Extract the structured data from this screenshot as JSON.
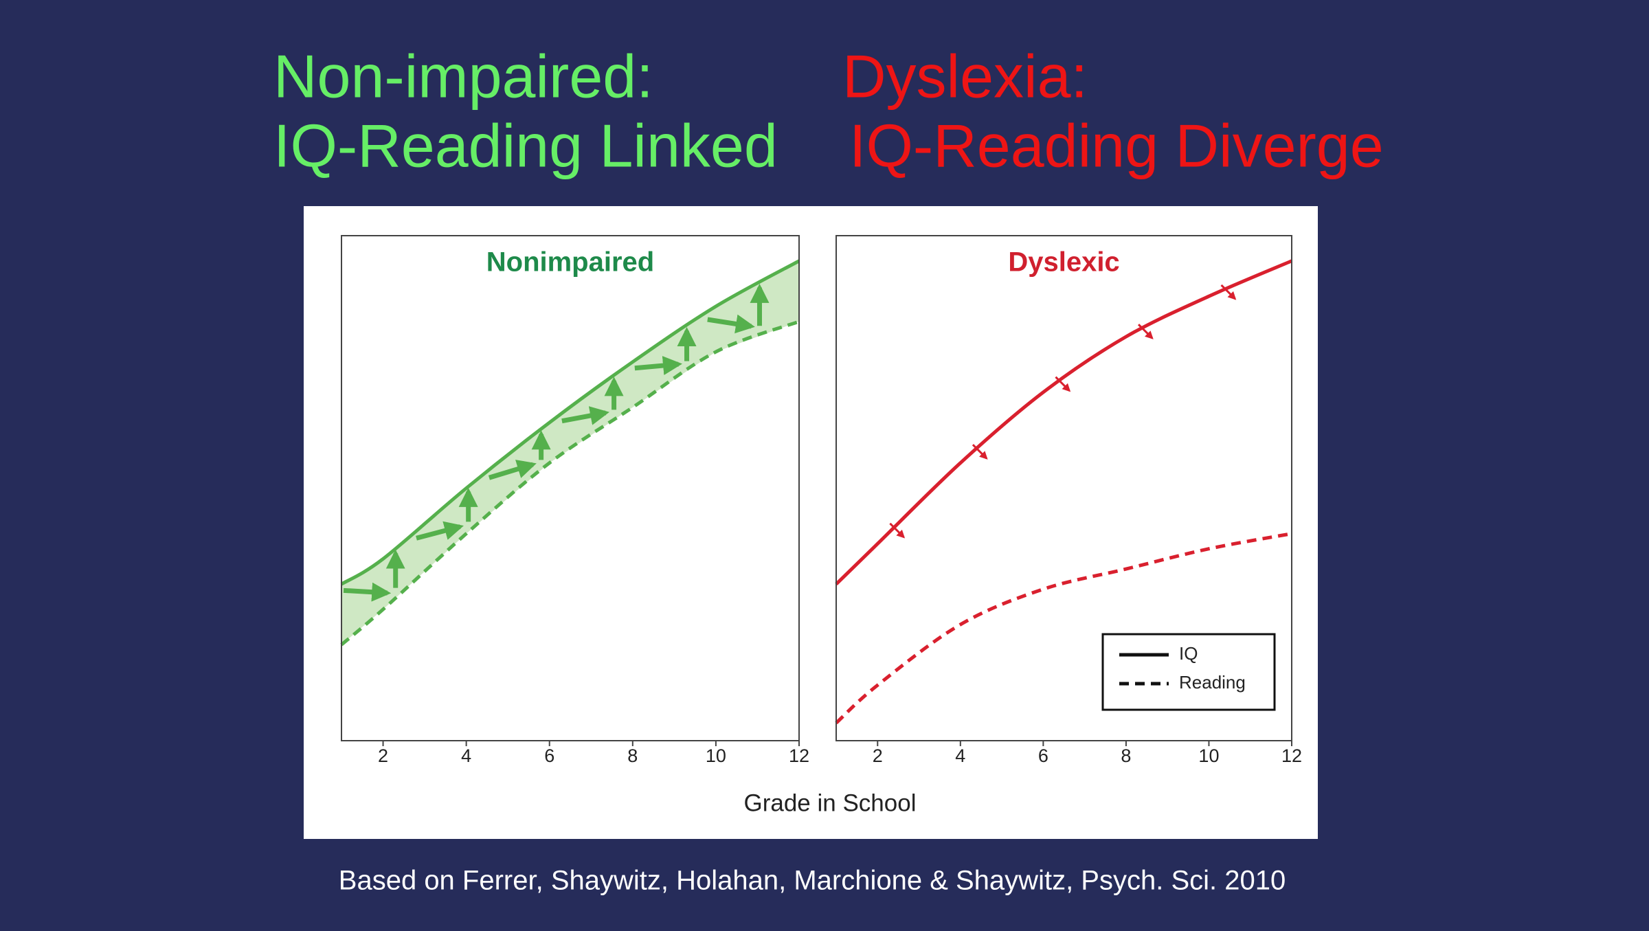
{
  "slide": {
    "headline_left": [
      "Non-impaired:",
      "IQ-Reading Linked"
    ],
    "headline_right": [
      "Dyslexia:",
      "IQ-Reading Diverge"
    ],
    "caption": "Based on Ferrer, Shaywitz, Holahan, Marchione & Shaywitz, Psych. Sci. 2010"
  },
  "figure": {
    "xlabel": "Grade in School"
  },
  "chart_data": [
    {
      "type": "line",
      "title": "Nonimpaired",
      "title_color": "#1e8a4a",
      "x": [
        1,
        2,
        4,
        6,
        8,
        10,
        12
      ],
      "xlim": [
        1,
        12
      ],
      "xticks": [
        2,
        4,
        6,
        8,
        10,
        12
      ],
      "ylim": [
        0,
        100
      ],
      "fill_between": "#cfe8c4",
      "series": [
        {
          "color": "#55b04c",
          "linestyle": "solid",
          "values": [
            31,
            36,
            50,
            63,
            75,
            86,
            95
          ]
        },
        {
          "color": "#55b04c",
          "linestyle": "dashed",
          "values": [
            19,
            26,
            41,
            55,
            66,
            77,
            83
          ]
        }
      ]
    },
    {
      "type": "line",
      "title": "Dyslexic",
      "title_color": "#d0202e",
      "x": [
        1,
        2,
        4,
        6,
        8,
        10,
        12
      ],
      "xlim": [
        1,
        12
      ],
      "xticks": [
        2,
        4,
        6,
        8,
        10,
        12
      ],
      "ylim": [
        0,
        100
      ],
      "legend": "lower right",
      "series": [
        {
          "name": "IQ",
          "color": "#d9202e",
          "linestyle": "solid",
          "values": [
            31,
            39,
            55,
            69,
            80,
            88,
            95
          ]
        },
        {
          "name": "Reading",
          "color": "#d9202e",
          "linestyle": "dashed",
          "values": [
            3.5,
            11,
            23,
            30,
            34,
            38,
            41
          ]
        }
      ]
    }
  ]
}
